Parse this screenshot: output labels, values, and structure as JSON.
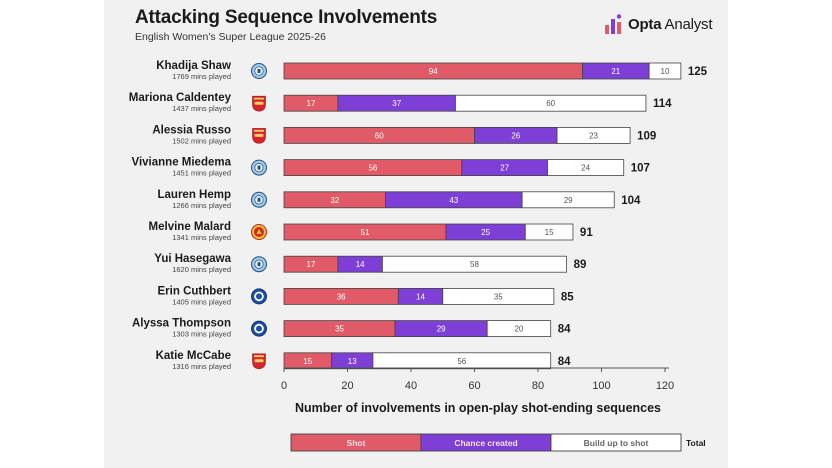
{
  "header": {
    "title": "Attacking Sequence Involvements",
    "subtitle": "English Women's Super League 2025-26",
    "brand_strong": "Opta",
    "brand_rest": " Analyst"
  },
  "colors": {
    "shot": "#e05a68",
    "chance_created": "#7e3fd6",
    "build_up": "#ffffff",
    "outline": "#444444",
    "background": "#f1f1f1"
  },
  "chart_data": {
    "type": "bar",
    "orientation": "horizontal",
    "stacked": true,
    "xlabel": "Number of involvements in open-play shot-ending sequences",
    "xlim": [
      0,
      120
    ],
    "xticks": [
      0,
      20,
      40,
      60,
      80,
      100,
      120
    ],
    "grid": false,
    "legend_position": "bottom",
    "categories": [
      {
        "name": "Khadija Shaw",
        "mins": "1769 mins played",
        "club": "Manchester City"
      },
      {
        "name": "Mariona Caldentey",
        "mins": "1437 mins played",
        "club": "Arsenal"
      },
      {
        "name": "Alessia Russo",
        "mins": "1502 mins played",
        "club": "Arsenal"
      },
      {
        "name": "Vivianne Miedema",
        "mins": "1451 mins played",
        "club": "Manchester City"
      },
      {
        "name": "Lauren Hemp",
        "mins": "1266 mins played",
        "club": "Manchester City"
      },
      {
        "name": "Melvine Malard",
        "mins": "1341 mins played",
        "club": "Manchester United"
      },
      {
        "name": "Yui Hasegawa",
        "mins": "1620 mins played",
        "club": "Manchester City"
      },
      {
        "name": "Erin Cuthbert",
        "mins": "1405 mins played",
        "club": "Chelsea"
      },
      {
        "name": "Alyssa Thompson",
        "mins": "1303 mins played",
        "club": "Chelsea"
      },
      {
        "name": "Katie McCabe",
        "mins": "1316 mins played",
        "club": "Arsenal"
      }
    ],
    "series": [
      {
        "name": "Shot",
        "color": "#e05a68",
        "values": [
          94,
          17,
          60,
          56,
          32,
          51,
          17,
          36,
          35,
          15
        ]
      },
      {
        "name": "Chance created",
        "color": "#7e3fd6",
        "values": [
          21,
          37,
          26,
          27,
          43,
          25,
          14,
          14,
          29,
          13
        ]
      },
      {
        "name": "Build up to shot",
        "color": "#ffffff",
        "values": [
          10,
          60,
          23,
          24,
          29,
          15,
          58,
          35,
          20,
          56
        ]
      }
    ],
    "totals": [
      125,
      114,
      109,
      107,
      104,
      91,
      89,
      85,
      84,
      84
    ],
    "legend_total_label": "Total"
  }
}
